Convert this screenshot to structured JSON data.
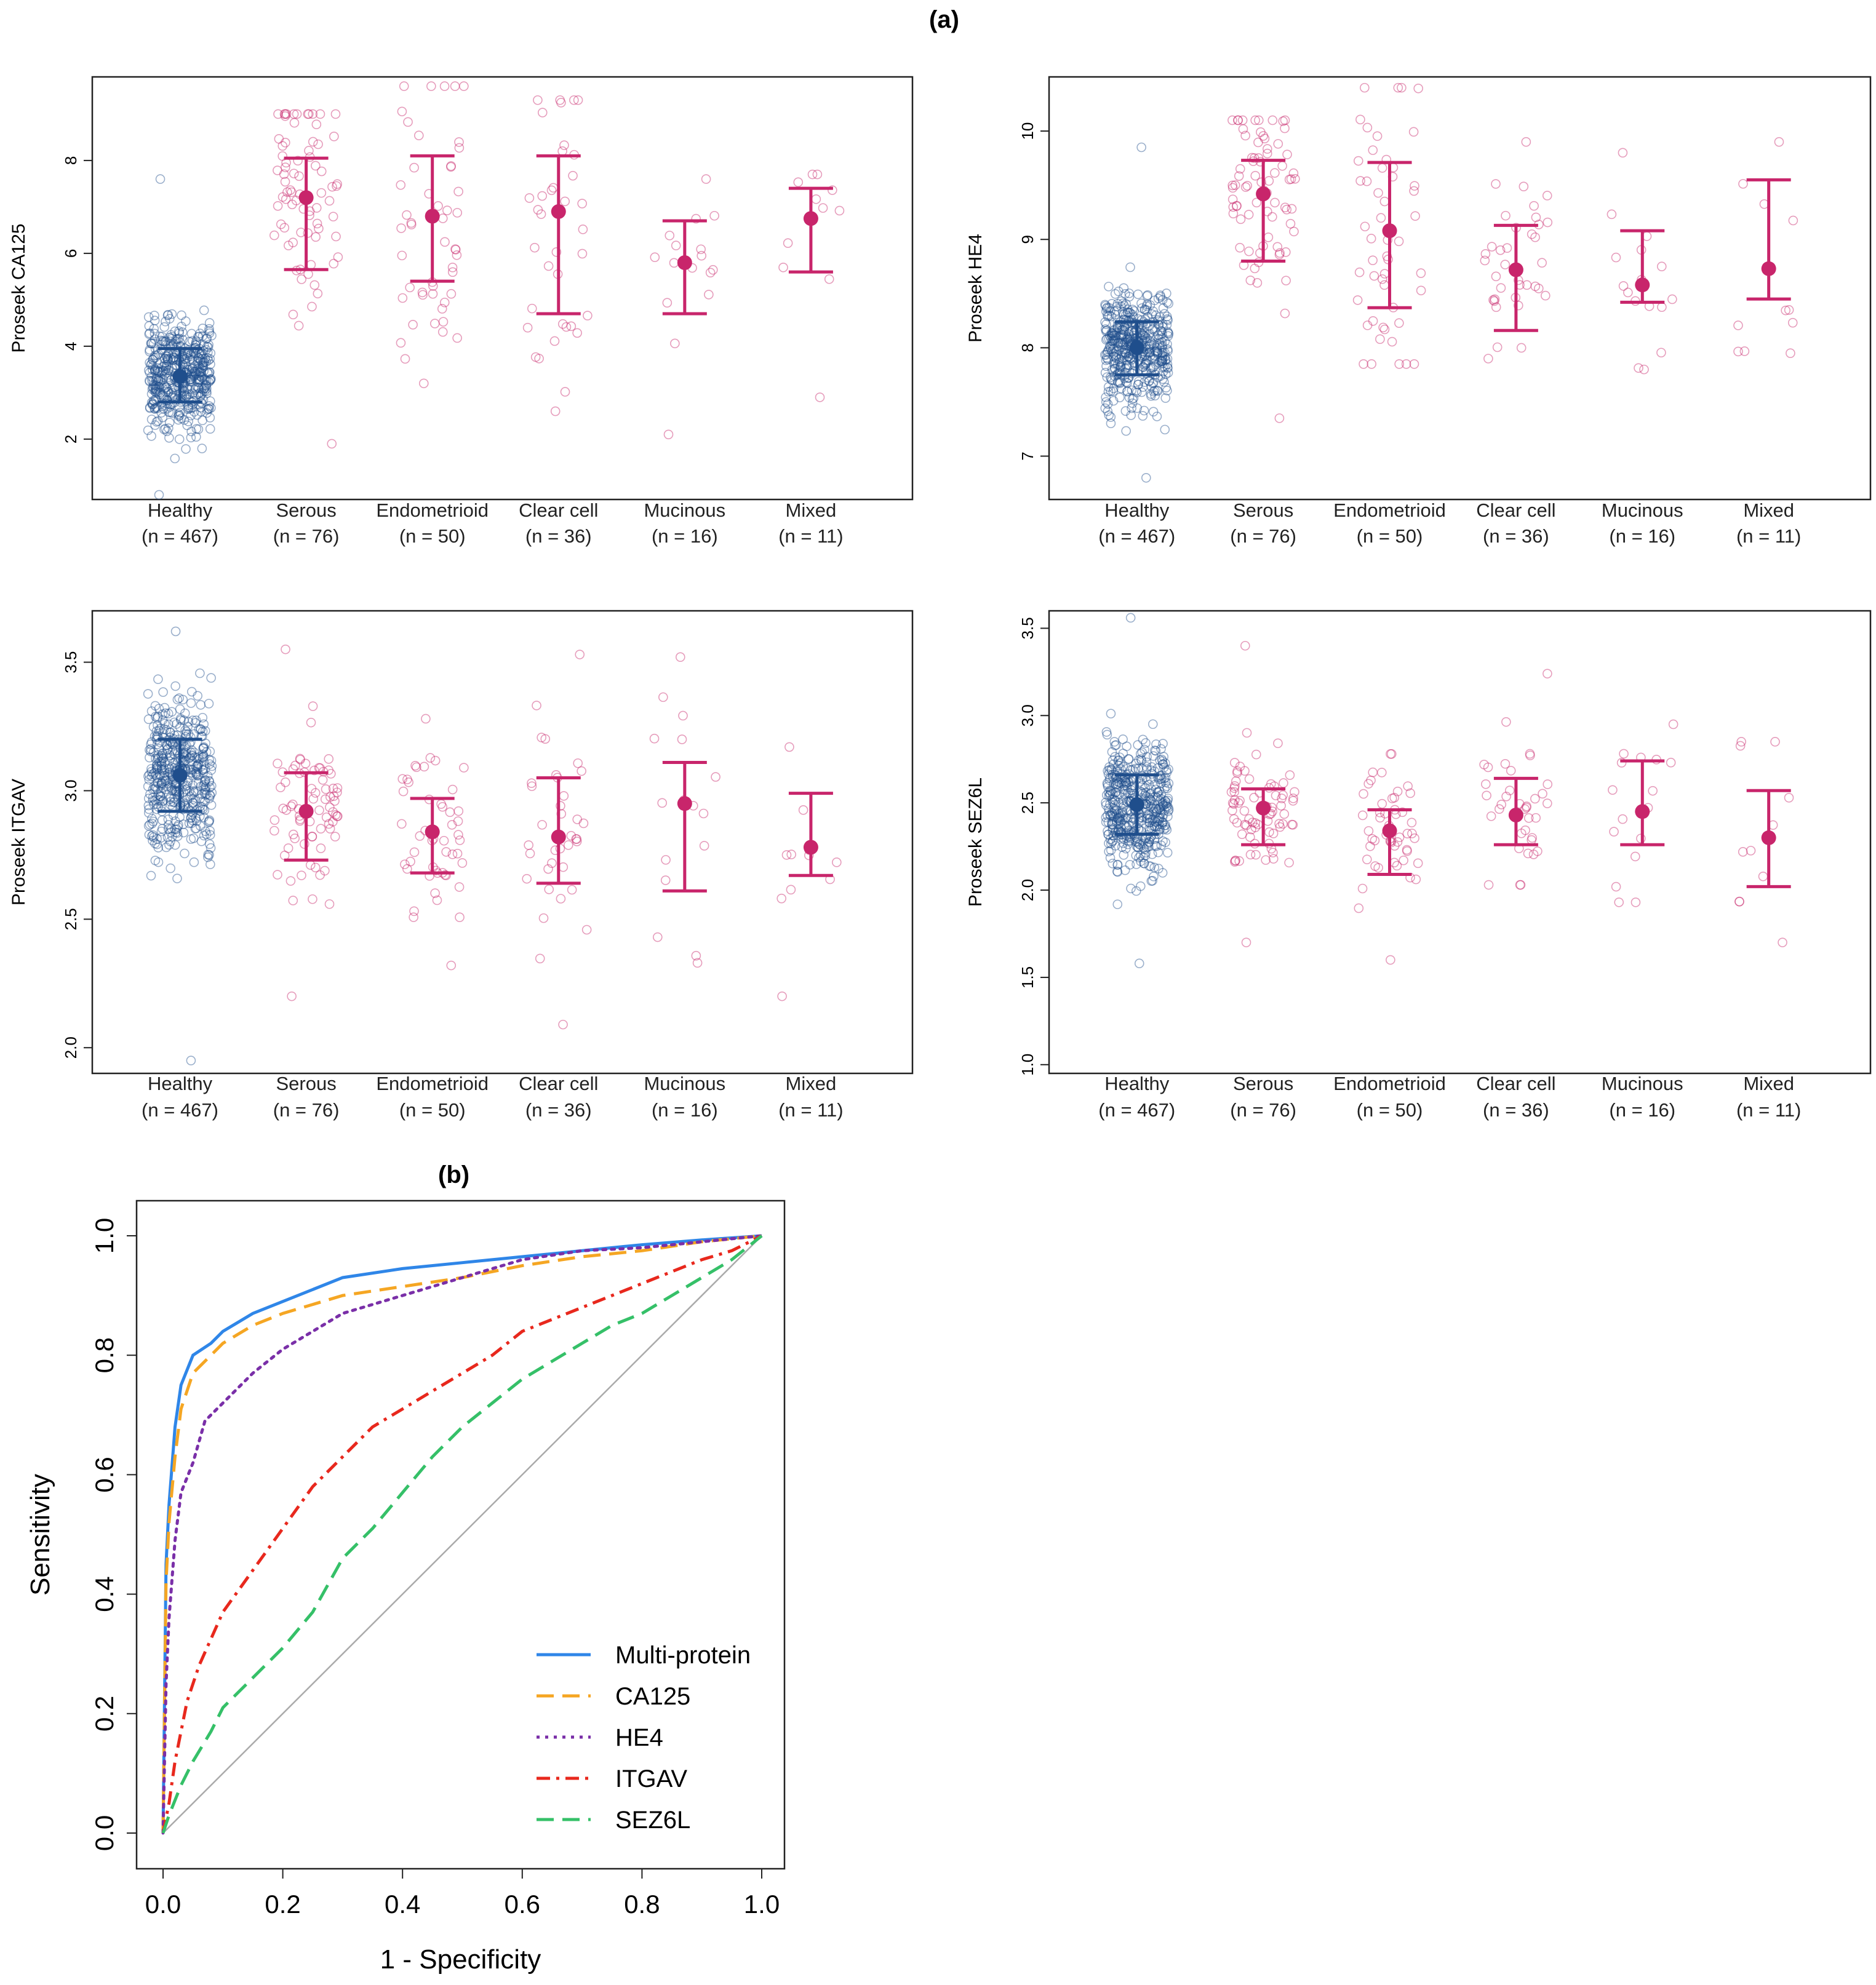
{
  "figure": {
    "panel_a_label": "(a)",
    "panel_b_label": "(b)"
  },
  "chart_data": [
    {
      "type": "scatter",
      "title": "",
      "ylabel": "Proseek CA125",
      "ylim": [
        0.7,
        9.8
      ],
      "yticks": [
        2,
        4,
        6,
        8
      ],
      "categories": [
        "Healthy",
        "Serous",
        "Endometrioid",
        "Clear cell",
        "Mucinous",
        "Mixed"
      ],
      "counts": [
        "(n = 467)",
        "(n = 76)",
        "(n = 50)",
        "(n = 36)",
        "(n = 16)",
        "(n = 11)"
      ],
      "median": [
        3.35,
        7.2,
        6.8,
        6.9,
        5.8,
        6.75
      ],
      "q1": [
        2.8,
        5.65,
        5.4,
        4.7,
        4.7,
        5.6
      ],
      "q3": [
        3.95,
        8.05,
        8.1,
        8.1,
        6.7,
        7.4
      ],
      "range": [
        [
          0.8,
          7.6
        ],
        [
          1.9,
          9.0
        ],
        [
          3.2,
          9.6
        ],
        [
          2.6,
          9.3
        ],
        [
          2.1,
          7.6
        ],
        [
          2.9,
          7.7
        ]
      ],
      "series_colors": [
        "#1f4e8c",
        "#c8256b",
        "#c8256b",
        "#c8256b",
        "#c8256b",
        "#c8256b"
      ]
    },
    {
      "type": "scatter",
      "title": "",
      "ylabel": "Proseek HE4",
      "ylim": [
        6.6,
        10.5
      ],
      "yticks": [
        7,
        8,
        9,
        10
      ],
      "categories": [
        "Healthy",
        "Serous",
        "Endometrioid",
        "Clear cell",
        "Mucinous",
        "Mixed"
      ],
      "counts": [
        "(n = 467)",
        "(n = 76)",
        "(n = 50)",
        "(n = 36)",
        "(n = 16)",
        "(n = 11)"
      ],
      "median": [
        8.0,
        9.42,
        9.08,
        8.72,
        8.58,
        8.73
      ],
      "q1": [
        7.75,
        8.8,
        8.37,
        8.16,
        8.42,
        8.45
      ],
      "q3": [
        8.24,
        9.73,
        9.71,
        9.13,
        9.08,
        9.55
      ],
      "range": [
        [
          6.8,
          9.85
        ],
        [
          7.35,
          10.1
        ],
        [
          7.85,
          10.4
        ],
        [
          7.9,
          9.9
        ],
        [
          7.8,
          9.8
        ],
        [
          7.95,
          9.9
        ]
      ],
      "series_colors": [
        "#1f4e8c",
        "#c8256b",
        "#c8256b",
        "#c8256b",
        "#c8256b",
        "#c8256b"
      ]
    },
    {
      "type": "scatter",
      "title": "",
      "ylabel": "Proseek ITGAV",
      "ylim": [
        1.9,
        3.7
      ],
      "yticks": [
        2.0,
        2.5,
        3.0,
        3.5
      ],
      "categories": [
        "Healthy",
        "Serous",
        "Endometrioid",
        "Clear cell",
        "Mucinous",
        "Mixed"
      ],
      "counts": [
        "(n = 467)",
        "(n = 76)",
        "(n = 50)",
        "(n = 36)",
        "(n = 16)",
        "(n = 11)"
      ],
      "median": [
        3.06,
        2.92,
        2.84,
        2.82,
        2.95,
        2.78
      ],
      "q1": [
        2.92,
        2.73,
        2.68,
        2.64,
        2.61,
        2.67
      ],
      "q3": [
        3.2,
        3.07,
        2.97,
        3.05,
        3.11,
        2.99
      ],
      "range": [
        [
          1.95,
          3.62
        ],
        [
          2.2,
          3.55
        ],
        [
          2.32,
          3.28
        ],
        [
          2.09,
          3.53
        ],
        [
          2.33,
          3.52
        ],
        [
          2.2,
          3.17
        ]
      ],
      "series_colors": [
        "#1f4e8c",
        "#c8256b",
        "#c8256b",
        "#c8256b",
        "#c8256b",
        "#c8256b"
      ]
    },
    {
      "type": "scatter",
      "title": "",
      "ylabel": "Proseek SEZ6L",
      "ylim": [
        0.95,
        3.6
      ],
      "yticks": [
        1.0,
        1.5,
        2.0,
        2.5,
        3.0,
        3.5
      ],
      "categories": [
        "Healthy",
        "Serous",
        "Endometrioid",
        "Clear cell",
        "Mucinous",
        "Mixed"
      ],
      "counts": [
        "(n = 467)",
        "(n = 76)",
        "(n = 50)",
        "(n = 36)",
        "(n = 16)",
        "(n = 11)"
      ],
      "median": [
        2.49,
        2.47,
        2.34,
        2.43,
        2.45,
        2.3
      ],
      "q1": [
        2.32,
        2.26,
        2.09,
        2.26,
        2.26,
        2.02
      ],
      "q3": [
        2.66,
        2.58,
        2.46,
        2.64,
        2.74,
        2.57
      ],
      "range": [
        [
          1.58,
          3.56
        ],
        [
          1.7,
          3.4
        ],
        [
          1.6,
          2.78
        ],
        [
          2.03,
          3.24
        ],
        [
          1.93,
          2.95
        ],
        [
          1.7,
          2.85
        ]
      ],
      "series_colors": [
        "#1f4e8c",
        "#c8256b",
        "#c8256b",
        "#c8256b",
        "#c8256b",
        "#c8256b"
      ]
    },
    {
      "type": "line",
      "title": "",
      "xlabel": "1 - Specificity",
      "ylabel": "Sensitivity",
      "xlim": [
        0,
        1
      ],
      "ylim": [
        0,
        1
      ],
      "xticks": [
        0.0,
        0.2,
        0.4,
        0.6,
        0.8,
        1.0
      ],
      "yticks": [
        0.0,
        0.2,
        0.4,
        0.6,
        0.8,
        1.0
      ],
      "legend_position": "bottom-right",
      "series": [
        {
          "name": "Multi-protein",
          "color": "#2f86e8",
          "dash": "solid",
          "x": [
            0,
            0.005,
            0.01,
            0.02,
            0.03,
            0.05,
            0.08,
            0.1,
            0.15,
            0.2,
            0.25,
            0.3,
            0.4,
            0.5,
            0.6,
            0.7,
            0.8,
            0.9,
            1.0
          ],
          "y": [
            0,
            0.45,
            0.55,
            0.68,
            0.75,
            0.8,
            0.82,
            0.84,
            0.87,
            0.89,
            0.91,
            0.93,
            0.945,
            0.955,
            0.965,
            0.975,
            0.985,
            0.993,
            1.0
          ]
        },
        {
          "name": "CA125",
          "color": "#f5a623",
          "dash": "long-dash",
          "x": [
            0,
            0.005,
            0.01,
            0.02,
            0.03,
            0.05,
            0.08,
            0.1,
            0.15,
            0.2,
            0.3,
            0.4,
            0.5,
            0.6,
            0.7,
            0.8,
            0.9,
            1.0
          ],
          "y": [
            0,
            0.42,
            0.52,
            0.63,
            0.71,
            0.77,
            0.8,
            0.82,
            0.85,
            0.87,
            0.9,
            0.915,
            0.93,
            0.95,
            0.965,
            0.975,
            0.99,
            1.0
          ]
        },
        {
          "name": "HE4",
          "color": "#7a2fa8",
          "dash": "dotted",
          "x": [
            0,
            0.005,
            0.01,
            0.02,
            0.03,
            0.05,
            0.07,
            0.1,
            0.15,
            0.2,
            0.25,
            0.3,
            0.4,
            0.5,
            0.6,
            0.7,
            0.8,
            0.9,
            1.0
          ],
          "y": [
            0,
            0.25,
            0.36,
            0.49,
            0.57,
            0.62,
            0.69,
            0.72,
            0.77,
            0.81,
            0.84,
            0.87,
            0.9,
            0.93,
            0.96,
            0.975,
            0.98,
            0.99,
            1.0
          ]
        },
        {
          "name": "ITGAV",
          "color": "#e8281d",
          "dash": "dash-dot",
          "x": [
            0,
            0.01,
            0.02,
            0.04,
            0.06,
            0.1,
            0.15,
            0.2,
            0.25,
            0.3,
            0.35,
            0.4,
            0.45,
            0.5,
            0.55,
            0.6,
            0.65,
            0.7,
            0.75,
            0.8,
            0.85,
            0.9,
            0.95,
            1.0
          ],
          "y": [
            0,
            0.05,
            0.12,
            0.22,
            0.28,
            0.37,
            0.44,
            0.51,
            0.58,
            0.63,
            0.68,
            0.71,
            0.74,
            0.77,
            0.8,
            0.84,
            0.86,
            0.88,
            0.9,
            0.92,
            0.94,
            0.96,
            0.975,
            1.0
          ]
        },
        {
          "name": "SEZ6L",
          "color": "#35c068",
          "dash": "long-dash",
          "x": [
            0,
            0.01,
            0.03,
            0.05,
            0.08,
            0.1,
            0.15,
            0.2,
            0.25,
            0.3,
            0.35,
            0.4,
            0.45,
            0.5,
            0.55,
            0.6,
            0.65,
            0.7,
            0.75,
            0.8,
            0.85,
            0.9,
            0.95,
            1.0
          ],
          "y": [
            0,
            0.03,
            0.08,
            0.12,
            0.17,
            0.21,
            0.26,
            0.31,
            0.37,
            0.46,
            0.51,
            0.57,
            0.63,
            0.68,
            0.72,
            0.76,
            0.79,
            0.82,
            0.85,
            0.87,
            0.9,
            0.93,
            0.96,
            1.0
          ]
        }
      ]
    }
  ]
}
